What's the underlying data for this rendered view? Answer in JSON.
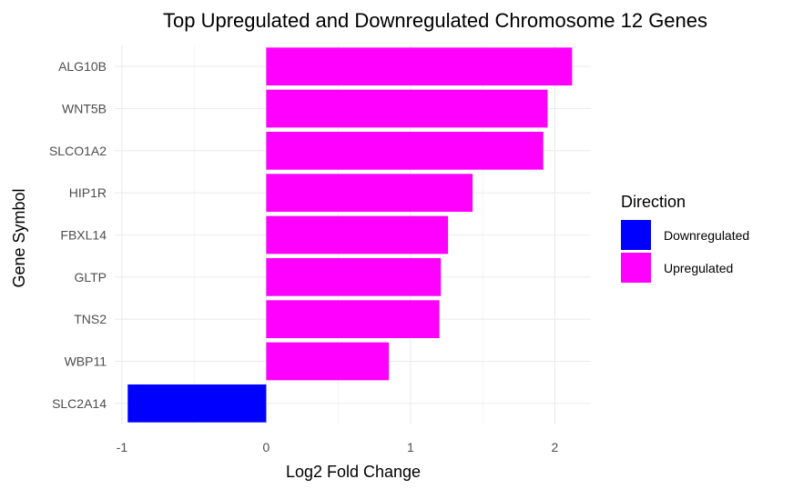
{
  "chart_data": {
    "type": "bar",
    "orientation": "horizontal",
    "title": "Top Upregulated and Downregulated Chromosome 12 Genes",
    "xlabel": "Log2 Fold Change",
    "ylabel": "Gene Symbol",
    "xlim": [
      -1.05,
      2.25
    ],
    "x_ticks": [
      -1,
      0,
      1,
      2
    ],
    "x_tick_labels": [
      "-1",
      "0",
      "1",
      "2"
    ],
    "categories": [
      "ALG10B",
      "WNT5B",
      "SLCO1A2",
      "HIP1R",
      "FBXL14",
      "GLTP",
      "TNS2",
      "WBP11",
      "SLC2A14"
    ],
    "values": [
      2.12,
      1.95,
      1.92,
      1.43,
      1.26,
      1.21,
      1.2,
      0.85,
      -0.96
    ],
    "direction": [
      "Upregulated",
      "Upregulated",
      "Upregulated",
      "Upregulated",
      "Upregulated",
      "Upregulated",
      "Upregulated",
      "Upregulated",
      "Downregulated"
    ],
    "grid": true,
    "legend": {
      "title": "Direction",
      "position": "right",
      "entries": [
        {
          "label": "Downregulated",
          "color": "#0000FF"
        },
        {
          "label": "Upregulated",
          "color": "#FF00FF"
        }
      ]
    }
  }
}
